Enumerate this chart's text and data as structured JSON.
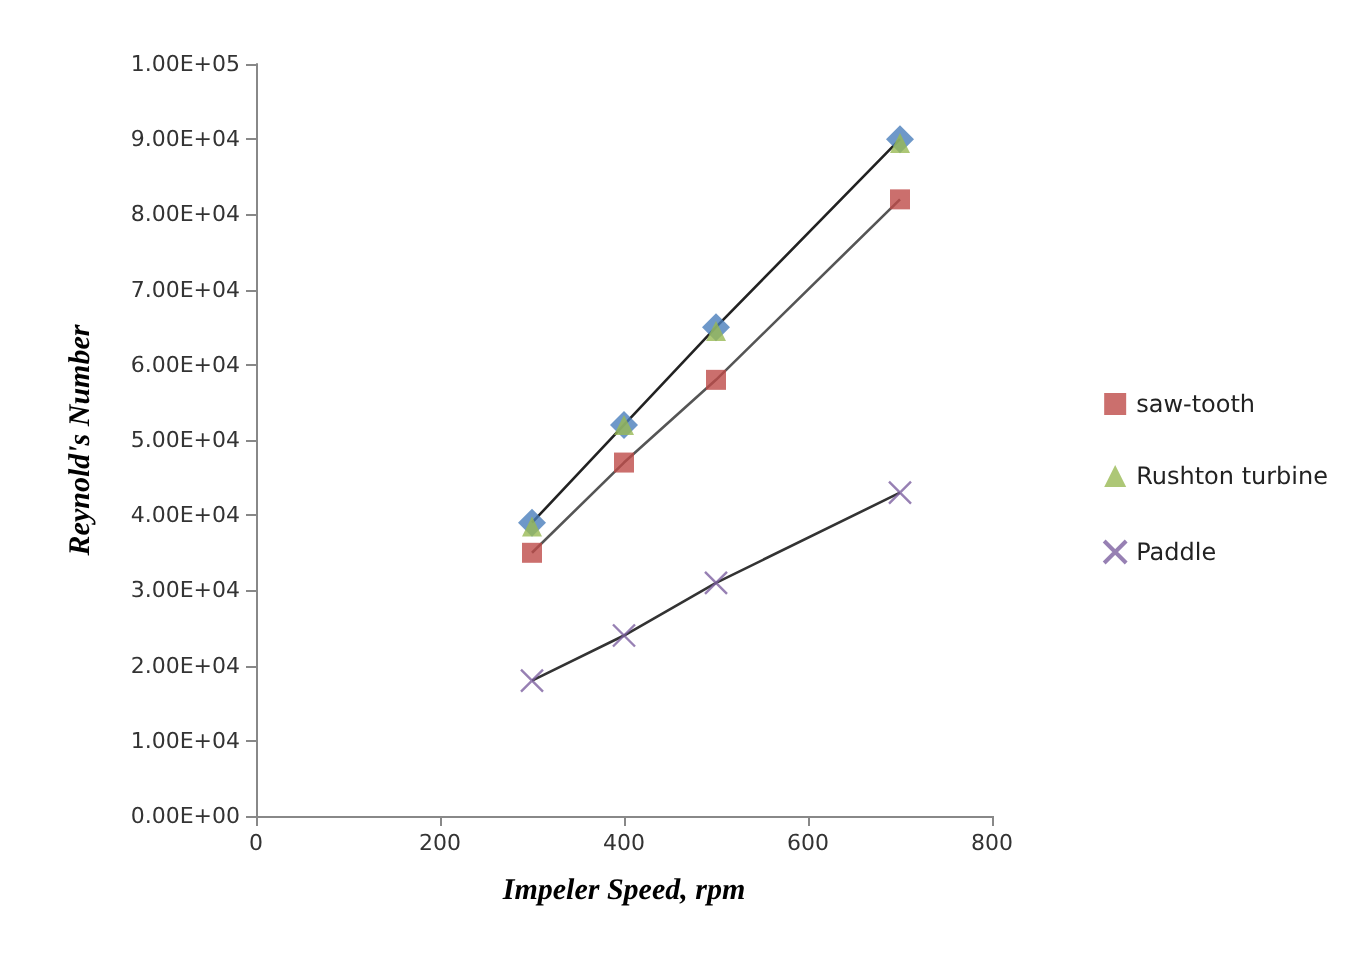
{
  "chart_data": {
    "type": "scatter",
    "xlabel": "Impeler Speed, rpm",
    "ylabel": "Reynold's Number",
    "x": [
      300,
      400,
      500,
      700
    ],
    "series": [
      {
        "color": "#4a7ebb",
        "marker": "diamond",
        "values": [
          39000,
          52000,
          65000,
          90000
        ]
      },
      {
        "name": "saw-tooth",
        "color": "#be4b48",
        "marker": "square",
        "values": [
          35000,
          47000,
          58000,
          82000
        ]
      },
      {
        "name": "Rushton turbine",
        "color": "#98b954",
        "marker": "triangle",
        "values": [
          38500,
          52000,
          64500,
          89500
        ]
      },
      {
        "name": "Paddle",
        "color": "#7d60a0",
        "marker": "cross",
        "values": [
          18000,
          24000,
          31000,
          43000
        ]
      },
      {
        "type": "line",
        "color": "#222222",
        "values": [
          39000,
          52000,
          65000,
          90000
        ]
      },
      {
        "type": "line",
        "color": "#555555",
        "values": [
          35000,
          47000,
          58000,
          82000
        ]
      },
      {
        "type": "line",
        "color": "#333333",
        "values": [
          18000,
          24000,
          31000,
          43000
        ]
      }
    ],
    "xlim": [
      0,
      800
    ],
    "xticks": [
      0,
      200,
      400,
      600,
      800
    ],
    "ylim": [
      0,
      100000
    ],
    "yticks": [
      {
        "value": 0,
        "label": "0.00E+00"
      },
      {
        "value": 10000,
        "label": "1.00E+04"
      },
      {
        "value": 20000,
        "label": "2.00E+04"
      },
      {
        "value": 30000,
        "label": "3.00E+04"
      },
      {
        "value": 40000,
        "label": "4.00E+04"
      },
      {
        "value": 50000,
        "label": "5.00E+04"
      },
      {
        "value": 60000,
        "label": "6.00E+04"
      },
      {
        "value": 70000,
        "label": "7.00E+04"
      },
      {
        "value": 80000,
        "label": "8.00E+04"
      },
      {
        "value": 90000,
        "label": "9.00E+04"
      },
      {
        "value": 100000,
        "label": "1.00E+05"
      }
    ],
    "grid": false,
    "legend": "right"
  }
}
